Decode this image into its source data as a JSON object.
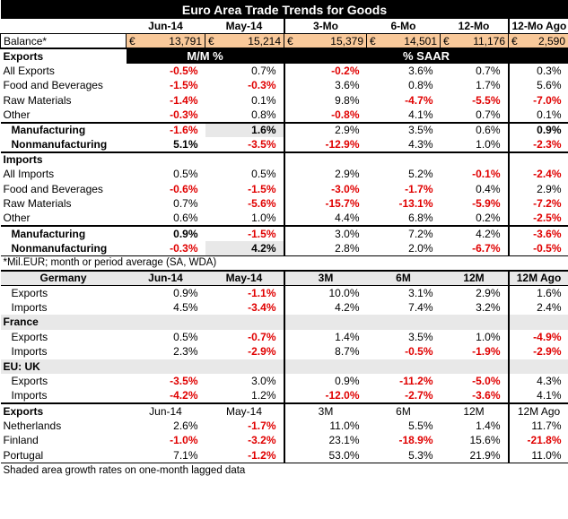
{
  "title": "Euro Area Trade Trends for Goods",
  "columns": [
    "",
    "Jun-14",
    "May-14",
    "3-Mo",
    "6-Mo",
    "12-Mo",
    "12-Mo Ago"
  ],
  "balance": {
    "label": "Balance*",
    "currency": "€",
    "values": [
      "13,791",
      "15,214",
      "15,379",
      "14,501",
      "11,176",
      "2,590"
    ]
  },
  "exports": {
    "label": "Exports",
    "mm_label": "M/M %",
    "saar_label": "% SAAR",
    "rows": [
      {
        "label": "All Exports",
        "values": [
          "-0.5%",
          "0.7%",
          "-0.2%",
          "3.6%",
          "0.7%",
          "0.3%"
        ]
      },
      {
        "label": "Food and Beverages",
        "values": [
          "-1.5%",
          "-0.3%",
          "3.6%",
          "0.8%",
          "1.7%",
          "5.6%"
        ]
      },
      {
        "label": "Raw Materials",
        "values": [
          "-1.4%",
          "0.1%",
          "9.8%",
          "-4.7%",
          "-5.5%",
          "-7.0%"
        ]
      },
      {
        "label": "Other",
        "values": [
          "-0.3%",
          "0.8%",
          "-0.8%",
          "4.1%",
          "0.7%",
          "0.1%"
        ]
      }
    ],
    "sub": [
      {
        "label": "Manufacturing",
        "values": [
          "-1.6%",
          "1.6%",
          "2.9%",
          "3.5%",
          "0.6%",
          "0.9%"
        ]
      },
      {
        "label": "Nonmanufacturing",
        "values": [
          "5.1%",
          "-3.5%",
          "-12.9%",
          "4.3%",
          "1.0%",
          "-2.3%"
        ]
      }
    ]
  },
  "imports": {
    "label": "Imports",
    "rows": [
      {
        "label": "All Imports",
        "values": [
          "0.5%",
          "0.5%",
          "2.9%",
          "5.2%",
          "-0.1%",
          "-2.4%"
        ]
      },
      {
        "label": "Food and Beverages",
        "values": [
          "-0.6%",
          "-1.5%",
          "-3.0%",
          "-1.7%",
          "0.4%",
          "2.9%"
        ]
      },
      {
        "label": "Raw Materials",
        "values": [
          "0.7%",
          "-5.6%",
          "-15.7%",
          "-13.1%",
          "-5.9%",
          "-7.2%"
        ]
      },
      {
        "label": "Other",
        "values": [
          "0.6%",
          "1.0%",
          "4.4%",
          "6.8%",
          "0.2%",
          "-2.5%"
        ]
      }
    ],
    "sub": [
      {
        "label": "Manufacturing",
        "values": [
          "0.9%",
          "-1.5%",
          "3.0%",
          "7.2%",
          "4.2%",
          "-3.6%"
        ]
      },
      {
        "label": "Nonmanufacturing",
        "values": [
          "-0.3%",
          "4.2%",
          "2.8%",
          "2.0%",
          "-6.7%",
          "-0.5%"
        ]
      }
    ]
  },
  "note1": "*Mil.EUR; month or period average (SA, WDA)",
  "countries_header": [
    "Germany",
    "Jun-14",
    "May-14",
    "3M",
    "6M",
    "12M",
    "12M Ago"
  ],
  "countries": [
    {
      "name": "Germany",
      "rows": [
        {
          "label": "Exports",
          "values": [
            "0.9%",
            "-1.1%",
            "10.0%",
            "3.1%",
            "2.9%",
            "1.6%"
          ]
        },
        {
          "label": "Imports",
          "values": [
            "4.5%",
            "-3.4%",
            "4.2%",
            "7.4%",
            "3.2%",
            "2.4%"
          ]
        }
      ]
    },
    {
      "name": "France",
      "rows": [
        {
          "label": "Exports",
          "values": [
            "0.5%",
            "-0.7%",
            "1.4%",
            "3.5%",
            "1.0%",
            "-4.9%"
          ]
        },
        {
          "label": "Imports",
          "values": [
            "2.3%",
            "-2.9%",
            "8.7%",
            "-0.5%",
            "-1.9%",
            "-2.9%"
          ]
        }
      ]
    },
    {
      "name": "EU: UK",
      "rows": [
        {
          "label": "Exports",
          "values": [
            "-3.5%",
            "3.0%",
            "0.9%",
            "-11.2%",
            "-5.0%",
            "4.3%"
          ]
        },
        {
          "label": "Imports",
          "values": [
            "-4.2%",
            "1.2%",
            "-12.0%",
            "-2.7%",
            "-3.6%",
            "4.1%"
          ]
        }
      ]
    }
  ],
  "exports2_header": [
    "Exports",
    "Jun-14",
    "May-14",
    "3M",
    "6M",
    "12M",
    "12M Ago"
  ],
  "exports2": [
    {
      "label": "Netherlands",
      "values": [
        "2.6%",
        "-1.7%",
        "11.0%",
        "5.5%",
        "1.4%",
        "11.7%"
      ]
    },
    {
      "label": "Finland",
      "values": [
        "-1.0%",
        "-3.2%",
        "23.1%",
        "-18.9%",
        "15.6%",
        "-21.8%"
      ]
    },
    {
      "label": "Portugal",
      "values": [
        "7.1%",
        "-1.2%",
        "53.0%",
        "5.3%",
        "21.9%",
        "11.0%"
      ]
    }
  ],
  "note2": "Shaded area growth rates on one-month lagged data"
}
